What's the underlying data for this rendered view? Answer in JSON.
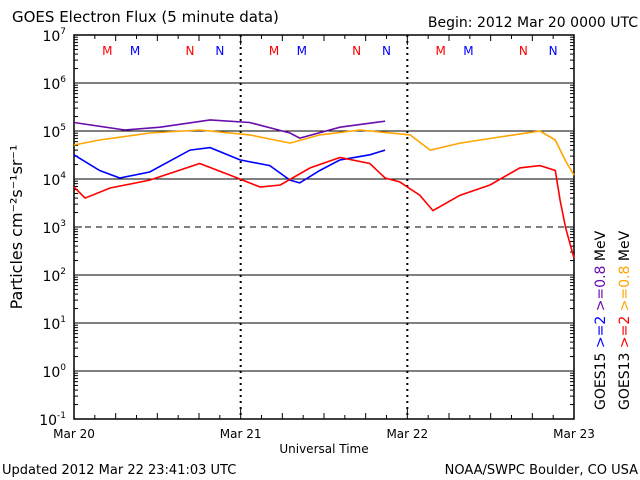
{
  "chart_data": {
    "type": "line",
    "title": "GOES Electron Flux (5 minute data)",
    "subtitle": "Begin: 2012 Mar 20 0000 UTC",
    "xlabel": "Universal Time",
    "ylabel": "Particles cm⁻²s⁻¹sr⁻¹",
    "x_unit": "hours since 2012 Mar 20 0000 UTC",
    "xlim": [
      0,
      72
    ],
    "ylim": [
      0.1,
      10000000
    ],
    "yscale": "log",
    "x_ticks": [
      {
        "value": 0,
        "label": "Mar 20"
      },
      {
        "value": 24,
        "label": "Mar 21"
      },
      {
        "value": 48,
        "label": "Mar 22"
      },
      {
        "value": 72,
        "label": "Mar 23"
      }
    ],
    "y_ticks": [
      {
        "exp": 7,
        "base": "10",
        "sup": "7"
      },
      {
        "exp": 6,
        "base": "10",
        "sup": "6"
      },
      {
        "exp": 5,
        "base": "10",
        "sup": "5"
      },
      {
        "exp": 4,
        "base": "10",
        "sup": "4"
      },
      {
        "exp": 3,
        "base": "10",
        "sup": "3"
      },
      {
        "exp": 2,
        "base": "10",
        "sup": "2"
      },
      {
        "exp": 1,
        "base": "10",
        "sup": "1"
      },
      {
        "exp": 0,
        "base": "10",
        "sup": "0"
      },
      {
        "exp": -1,
        "base": "10",
        "sup": "-1"
      }
    ],
    "threshold": {
      "value": 1000,
      "style": "dashed"
    },
    "grid": true,
    "markers": [
      {
        "label": "M",
        "hour": 4.8,
        "color": "#ff0000"
      },
      {
        "label": "M",
        "hour": 8.8,
        "color": "#0000ff"
      },
      {
        "label": "N",
        "hour": 16.7,
        "color": "#ff0000"
      },
      {
        "label": "N",
        "hour": 21.0,
        "color": "#0000ff"
      },
      {
        "label": "M",
        "hour": 28.8,
        "color": "#ff0000"
      },
      {
        "label": "M",
        "hour": 32.8,
        "color": "#0000ff"
      },
      {
        "label": "N",
        "hour": 40.7,
        "color": "#ff0000"
      },
      {
        "label": "N",
        "hour": 45.0,
        "color": "#0000ff"
      },
      {
        "label": "M",
        "hour": 52.8,
        "color": "#ff0000"
      },
      {
        "label": "M",
        "hour": 56.8,
        "color": "#0000ff"
      },
      {
        "label": "N",
        "hour": 64.7,
        "color": "#ff0000"
      },
      {
        "label": "N",
        "hour": 69.0,
        "color": "#0000ff"
      }
    ],
    "series": [
      {
        "name": "GOES15 >=0.8 MeV",
        "color": "#6a0dad",
        "x": [
          0,
          7.3,
          12.4,
          19.6,
          25.3,
          31.1,
          32.5,
          38.3,
          44.8
        ],
        "y": [
          150000,
          105000,
          120000,
          170000,
          150000,
          91000,
          71000,
          120000,
          160000
        ]
      },
      {
        "name": "GOES13 >=0.8 MeV",
        "color": "#ffa500",
        "x": [
          0,
          3.7,
          10.9,
          18.1,
          25.3,
          31.1,
          35.4,
          41.2,
          48.4,
          51.3,
          55.6,
          61.3,
          67.1,
          69.3,
          70.7,
          72
        ],
        "y": [
          51000,
          65000,
          91000,
          105000,
          83000,
          56000,
          83000,
          105000,
          83000,
          40000,
          56000,
          75000,
          100000,
          65000,
          25000,
          12000
        ]
      },
      {
        "name": "GOES15 >=2 MeV",
        "color": "#0000ff",
        "x": [
          0,
          3.7,
          6.6,
          10.9,
          16.7,
          19.6,
          23.9,
          28.2,
          31.1,
          32.5,
          35.4,
          38.3,
          42.6,
          44.8
        ],
        "y": [
          32000,
          15000,
          10500,
          14000,
          40000,
          45000,
          25000,
          19000,
          9500,
          8300,
          15000,
          25000,
          32000,
          40000
        ]
      },
      {
        "name": "GOES13 >=2 MeV",
        "color": "#ff0000",
        "x": [
          0,
          1.6,
          5.2,
          10.9,
          18.1,
          22.5,
          26.8,
          29.7,
          34.0,
          38.3,
          42.6,
          44.8,
          46.9,
          49.8,
          51.7,
          55.6,
          59.9,
          64.2,
          67.1,
          69.3,
          70.0,
          70.8,
          72
        ],
        "y": [
          6800,
          4000,
          6500,
          9500,
          21000,
          12000,
          6800,
          7500,
          17000,
          28000,
          21000,
          10500,
          8700,
          4600,
          2200,
          4600,
          7500,
          17000,
          19000,
          15000,
          3600,
          950,
          225
        ]
      }
    ],
    "legend_placement": "right",
    "legend": [
      {
        "sat": "GOES15",
        "entries": [
          {
            "text": ">=2",
            "color": "#0000ff"
          },
          {
            "text": ">=0.8",
            "color": "#6a0dad"
          },
          {
            "text": "MeV",
            "color": "#000000"
          }
        ]
      },
      {
        "sat": "GOES13",
        "entries": [
          {
            "text": ">=2",
            "color": "#ff0000"
          },
          {
            "text": ">=0.8",
            "color": "#ffa500"
          },
          {
            "text": "MeV",
            "color": "#000000"
          }
        ]
      }
    ]
  },
  "footer": {
    "updated": "Updated 2012 Mar 22 23:41:03 UTC",
    "source": "NOAA/SWPC Boulder, CO USA"
  }
}
